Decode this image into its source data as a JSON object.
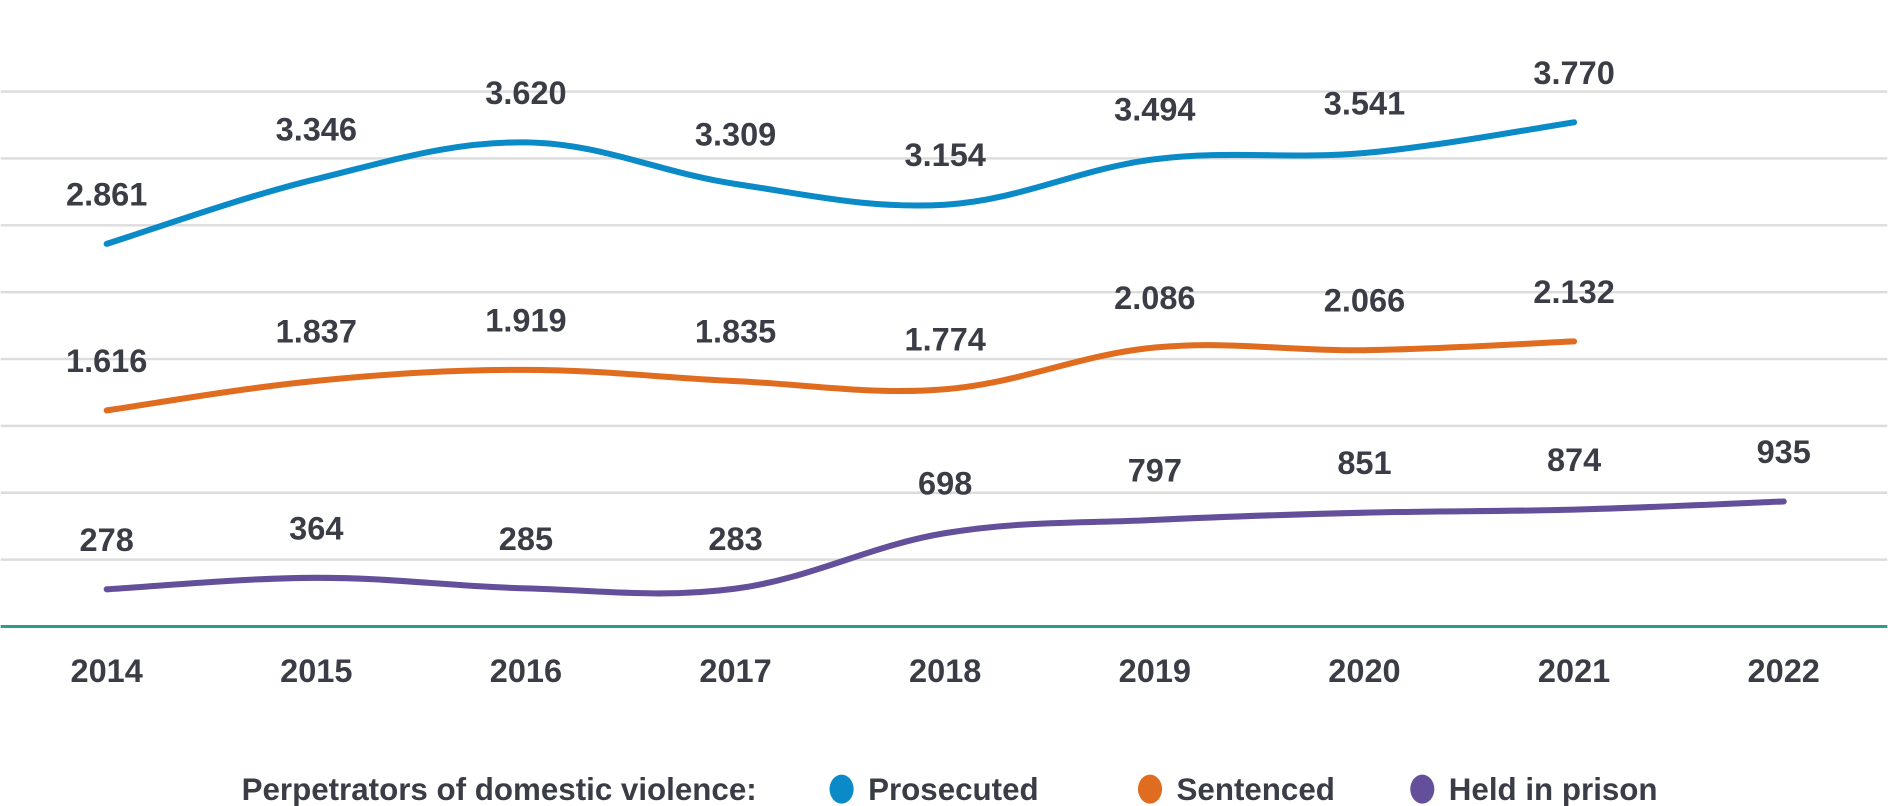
{
  "chart_data": {
    "type": "line",
    "categories": [
      "2014",
      "2015",
      "2016",
      "2017",
      "2018",
      "2019",
      "2020",
      "2021",
      "2022"
    ],
    "ylim": [
      0,
      4000
    ],
    "ytick_step": 500,
    "grid": true,
    "y_tick_labels_shown": false,
    "legend_title": "Perpetrators of domestic violence:",
    "legend_position": "bottom",
    "series": [
      {
        "name": "Prosecuted",
        "color": "#0a8ac6",
        "values": [
          2861,
          3346,
          3620,
          3309,
          3154,
          3494,
          3541,
          3770,
          null
        ],
        "labels": [
          "2.861",
          "3.346",
          "3.620",
          "3.309",
          "3.154",
          "3.494",
          "3.541",
          "3.770",
          null
        ]
      },
      {
        "name": "Sentenced",
        "color": "#e06c20",
        "values": [
          1616,
          1837,
          1919,
          1835,
          1774,
          2086,
          2066,
          2132,
          null
        ],
        "labels": [
          "1.616",
          "1.837",
          "1.919",
          "1.835",
          "1.774",
          "2.086",
          "2.066",
          "2.132",
          null
        ]
      },
      {
        "name": "Held in prison",
        "color": "#634f9a",
        "values": [
          278,
          364,
          285,
          283,
          698,
          797,
          851,
          874,
          935
        ],
        "labels": [
          "278",
          "364",
          "285",
          "283",
          "698",
          "797",
          "851",
          "874",
          "935"
        ]
      }
    ],
    "colors": {
      "grid": "#dcdcdc",
      "baseline": "#2a9d8f",
      "text": "#3a3d45"
    }
  }
}
